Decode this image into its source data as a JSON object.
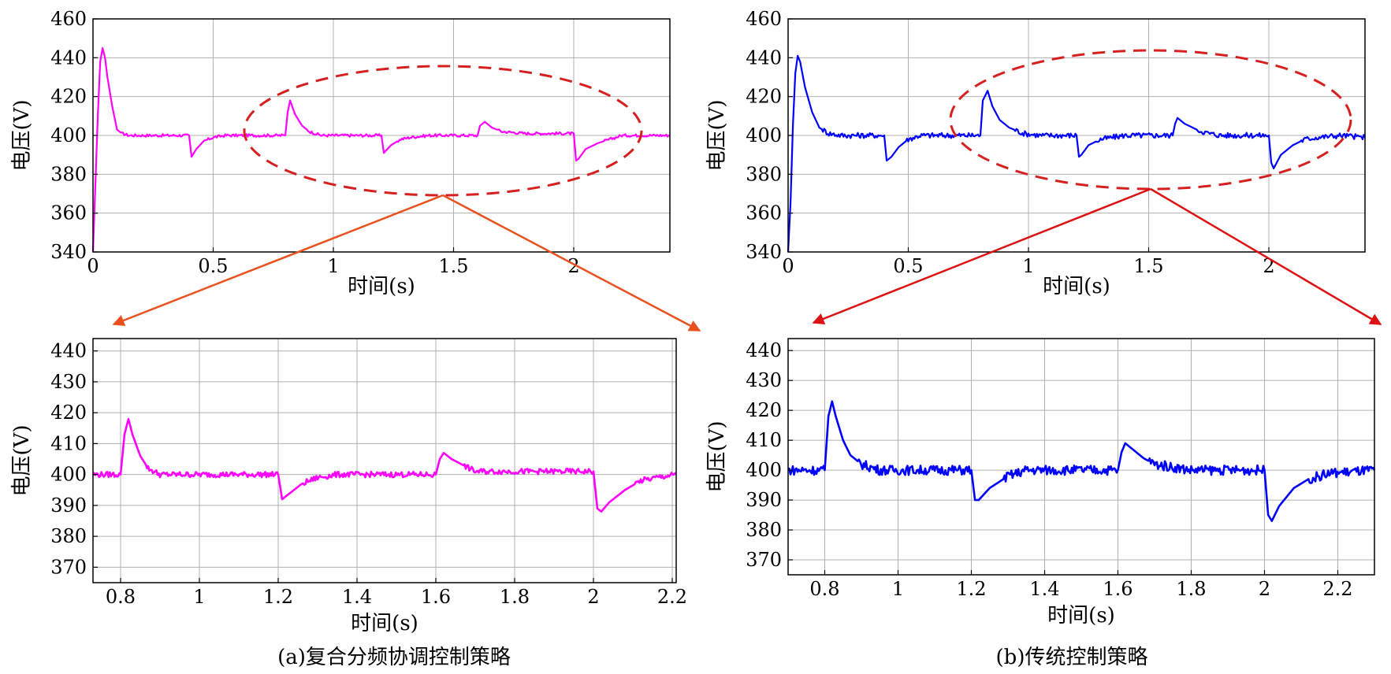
{
  "figure": {
    "captions": [
      "(a)复合分频协调控制策略",
      "(b)传统控制策略"
    ],
    "colors": {
      "series_a": "#ff00ff",
      "series_b": "#0000ff",
      "ellipse": "#d62020",
      "arrow_a": "#e8501e",
      "arrow_b": "#dd1111"
    }
  },
  "chart_data": [
    {
      "id": "a_top",
      "type": "line",
      "xlabel": "时间(s)",
      "ylabel": "电压(V)",
      "xlim": [
        0,
        2.4
      ],
      "ylim": [
        340,
        460
      ],
      "xticks": [
        0,
        0.5,
        1,
        1.5,
        2
      ],
      "xtick_labels": [
        "0",
        "0.5",
        "1",
        "1.5",
        "2"
      ],
      "yticks": [
        340,
        360,
        380,
        400,
        420,
        440,
        460
      ],
      "grid": true,
      "series": [
        {
          "color": "#ff00ff",
          "x": [
            0,
            0.01,
            0.02,
            0.03,
            0.04,
            0.05,
            0.06,
            0.08,
            0.1,
            0.12,
            0.15,
            0.2,
            0.3,
            0.4,
            0.4,
            0.41,
            0.43,
            0.46,
            0.5,
            0.55,
            0.6,
            0.8,
            0.8,
            0.81,
            0.82,
            0.84,
            0.87,
            0.9,
            0.95,
            1.0,
            1.2,
            1.2,
            1.21,
            1.24,
            1.28,
            1.32,
            1.4,
            1.6,
            1.6,
            1.61,
            1.63,
            1.66,
            1.7,
            1.8,
            2.0,
            2.0,
            2.01,
            2.02,
            2.05,
            2.1,
            2.15,
            2.2,
            2.4
          ],
          "y": [
            340,
            375,
            410,
            438,
            445,
            440,
            430,
            415,
            403,
            401,
            400,
            400,
            400,
            400,
            400,
            389,
            393,
            397,
            399,
            400,
            400,
            400,
            400,
            412,
            418,
            411,
            405,
            402,
            400,
            400,
            400,
            400,
            391,
            395,
            398,
            399,
            400,
            400,
            400,
            405,
            407,
            404,
            402,
            401,
            401,
            401,
            387,
            388,
            393,
            396,
            398,
            400,
            400
          ],
          "noise": 0.7
        }
      ]
    },
    {
      "id": "b_top",
      "type": "line",
      "xlabel": "时间(s)",
      "ylabel": "电压(V)",
      "xlim": [
        0,
        2.4
      ],
      "ylim": [
        340,
        460
      ],
      "xticks": [
        0,
        0.5,
        1,
        1.5,
        2
      ],
      "xtick_labels": [
        "0",
        "0.5",
        "1",
        "1.5",
        "2"
      ],
      "yticks": [
        340,
        360,
        380,
        400,
        420,
        440,
        460
      ],
      "grid": true,
      "series": [
        {
          "color": "#0000ff",
          "x": [
            0,
            0.01,
            0.02,
            0.03,
            0.04,
            0.05,
            0.07,
            0.1,
            0.13,
            0.17,
            0.22,
            0.3,
            0.4,
            0.4,
            0.41,
            0.43,
            0.46,
            0.5,
            0.55,
            0.6,
            0.8,
            0.8,
            0.81,
            0.83,
            0.85,
            0.88,
            0.92,
            0.98,
            1.05,
            1.2,
            1.2,
            1.21,
            1.22,
            1.25,
            1.3,
            1.35,
            1.4,
            1.6,
            1.6,
            1.61,
            1.62,
            1.65,
            1.7,
            1.75,
            1.8,
            2.0,
            2.0,
            2.01,
            2.02,
            2.05,
            2.1,
            2.15,
            2.2,
            2.3,
            2.4
          ],
          "y": [
            340,
            365,
            405,
            432,
            441,
            438,
            425,
            412,
            404,
            401,
            400,
            400,
            400,
            400,
            387,
            389,
            394,
            398,
            400,
            400,
            400,
            400,
            418,
            423,
            415,
            408,
            404,
            401,
            400,
            400,
            400,
            389,
            390,
            395,
            398,
            399,
            400,
            400,
            400,
            406,
            409,
            406,
            403,
            401,
            400,
            400,
            400,
            386,
            383,
            390,
            395,
            398,
            399,
            400,
            399
          ],
          "noise": 1.4
        }
      ]
    },
    {
      "id": "a_zoom",
      "type": "line",
      "xlabel": "时间(s)",
      "ylabel": "电压(V)",
      "xlim": [
        0.73,
        2.21
      ],
      "ylim": [
        365,
        444
      ],
      "xticks": [
        0.8,
        1,
        1.2,
        1.4,
        1.6,
        1.8,
        2,
        2.2
      ],
      "xtick_labels": [
        "0.8",
        "1",
        "1.2",
        "1.4",
        "1.6",
        "1.8",
        "2",
        "2.2"
      ],
      "yticks": [
        370,
        380,
        390,
        400,
        410,
        420,
        430,
        440
      ],
      "grid": true,
      "series": [
        {
          "color": "#ff00ff",
          "x": [
            0.73,
            0.8,
            0.8,
            0.81,
            0.82,
            0.83,
            0.85,
            0.87,
            0.9,
            0.95,
            1.0,
            1.2,
            1.2,
            1.21,
            1.23,
            1.26,
            1.3,
            1.35,
            1.4,
            1.6,
            1.6,
            1.61,
            1.62,
            1.64,
            1.67,
            1.7,
            1.8,
            2.0,
            2.0,
            2.01,
            2.02,
            2.04,
            2.08,
            2.12,
            2.16,
            2.21
          ],
          "y": [
            400,
            400,
            400,
            413,
            418,
            413,
            406,
            402,
            400,
            400,
            400,
            400,
            400,
            392,
            394,
            397,
            399,
            400,
            400,
            400,
            400,
            405,
            407,
            405,
            403,
            401,
            401,
            401,
            401,
            389,
            388,
            391,
            395,
            398,
            399,
            400
          ],
          "noise": 0.9
        }
      ]
    },
    {
      "id": "b_zoom",
      "type": "line",
      "xlabel": "时间(s)",
      "ylabel": "电压(V)",
      "xlim": [
        0.7,
        2.3
      ],
      "ylim": [
        365,
        444
      ],
      "xticks": [
        0.8,
        1,
        1.2,
        1.4,
        1.6,
        1.8,
        2,
        2.2
      ],
      "xtick_labels": [
        "0.8",
        "1",
        "1.2",
        "1.4",
        "1.6",
        "1.8",
        "2",
        "2.2"
      ],
      "yticks": [
        370,
        380,
        390,
        400,
        410,
        420,
        430,
        440
      ],
      "grid": true,
      "series": [
        {
          "color": "#0000ff",
          "x": [
            0.7,
            0.8,
            0.8,
            0.81,
            0.82,
            0.83,
            0.85,
            0.87,
            0.9,
            0.95,
            1.0,
            1.2,
            1.2,
            1.21,
            1.22,
            1.25,
            1.3,
            1.35,
            1.4,
            1.6,
            1.6,
            1.61,
            1.62,
            1.64,
            1.67,
            1.7,
            1.75,
            1.8,
            2.0,
            2.0,
            2.01,
            2.02,
            2.04,
            2.08,
            2.12,
            2.18,
            2.3
          ],
          "y": [
            400,
            400,
            400,
            418,
            423,
            418,
            410,
            405,
            402,
            400,
            400,
            400,
            400,
            390,
            390,
            394,
            398,
            400,
            400,
            400,
            400,
            406,
            409,
            407,
            404,
            402,
            401,
            400,
            400,
            400,
            385,
            383,
            388,
            394,
            397,
            399,
            400
          ],
          "noise": 1.6
        }
      ]
    }
  ]
}
